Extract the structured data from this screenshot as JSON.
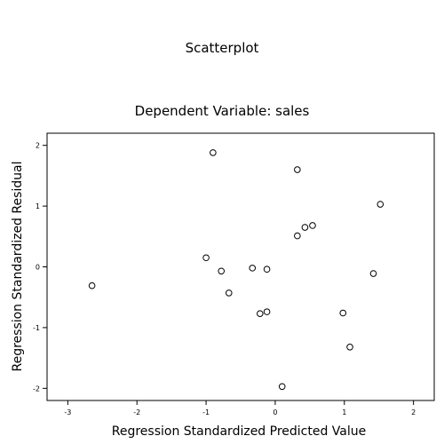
{
  "chart_data": {
    "type": "scatter",
    "title": "Scatterplot",
    "subtitle": "Dependent Variable: sales",
    "xlabel": "Regression Standardized Predicted Value",
    "ylabel": "Regression Standardized Residual",
    "xlim": [
      -3.3,
      2.3
    ],
    "ylim": [
      -2.2,
      2.2
    ],
    "xticks": [
      -3,
      -2,
      -1,
      0,
      1,
      2
    ],
    "xtick_labels": [
      "-3",
      "-2",
      "-1",
      "0",
      "1",
      "2"
    ],
    "yticks": [
      2,
      1,
      0,
      -1,
      -2
    ],
    "ytick_labels": [
      "2",
      "1",
      "0",
      "-1",
      "-2"
    ],
    "grid": false,
    "legend": "none",
    "marker": "open-circle",
    "x": [
      -2.65,
      -0.9,
      -1.0,
      -0.78,
      -0.67,
      -0.33,
      -0.12,
      -0.22,
      -0.12,
      0.1,
      0.32,
      0.32,
      0.43,
      0.54,
      0.98,
      1.08,
      1.42,
      1.52
    ],
    "y": [
      -0.31,
      1.88,
      0.15,
      -0.07,
      -0.43,
      -0.02,
      -0.04,
      -0.77,
      -0.74,
      -1.97,
      1.6,
      0.51,
      0.65,
      0.68,
      -0.76,
      -1.32,
      -0.11,
      1.03
    ]
  }
}
